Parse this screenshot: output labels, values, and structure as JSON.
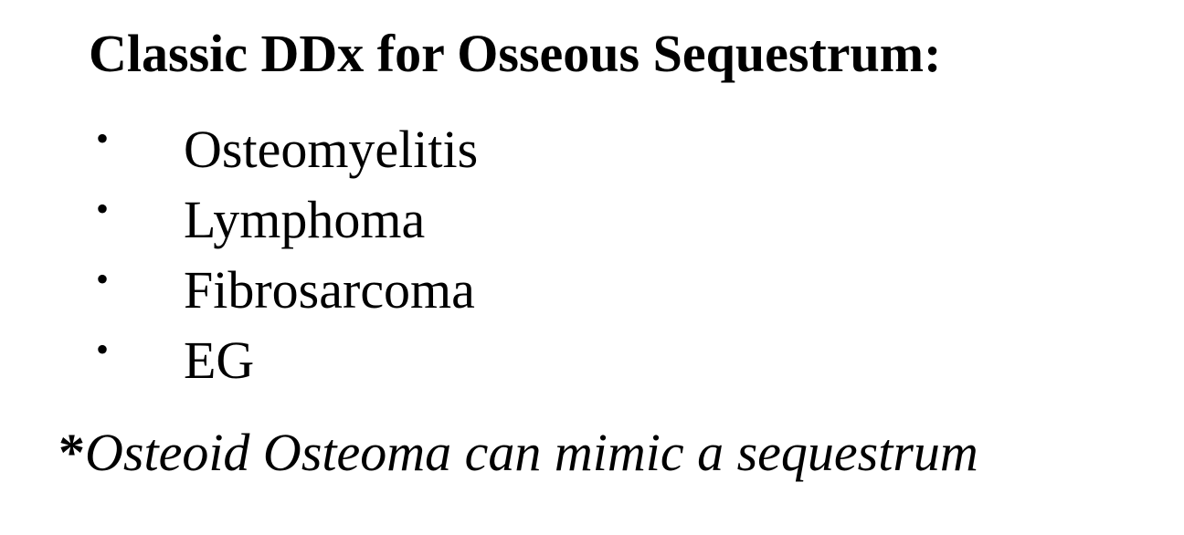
{
  "title": "Classic DDx for Osseous Sequestrum:",
  "bullets": [
    {
      "marker": "•",
      "text": "Osteomyelitis"
    },
    {
      "marker": "•",
      "text": "Lymphoma"
    },
    {
      "marker": "•",
      "text": "Fibrosarcoma"
    },
    {
      "marker": "•",
      "text": "EG"
    }
  ],
  "note": {
    "marker": "*",
    "text": "Osteoid Osteoma can mimic a sequestrum"
  }
}
